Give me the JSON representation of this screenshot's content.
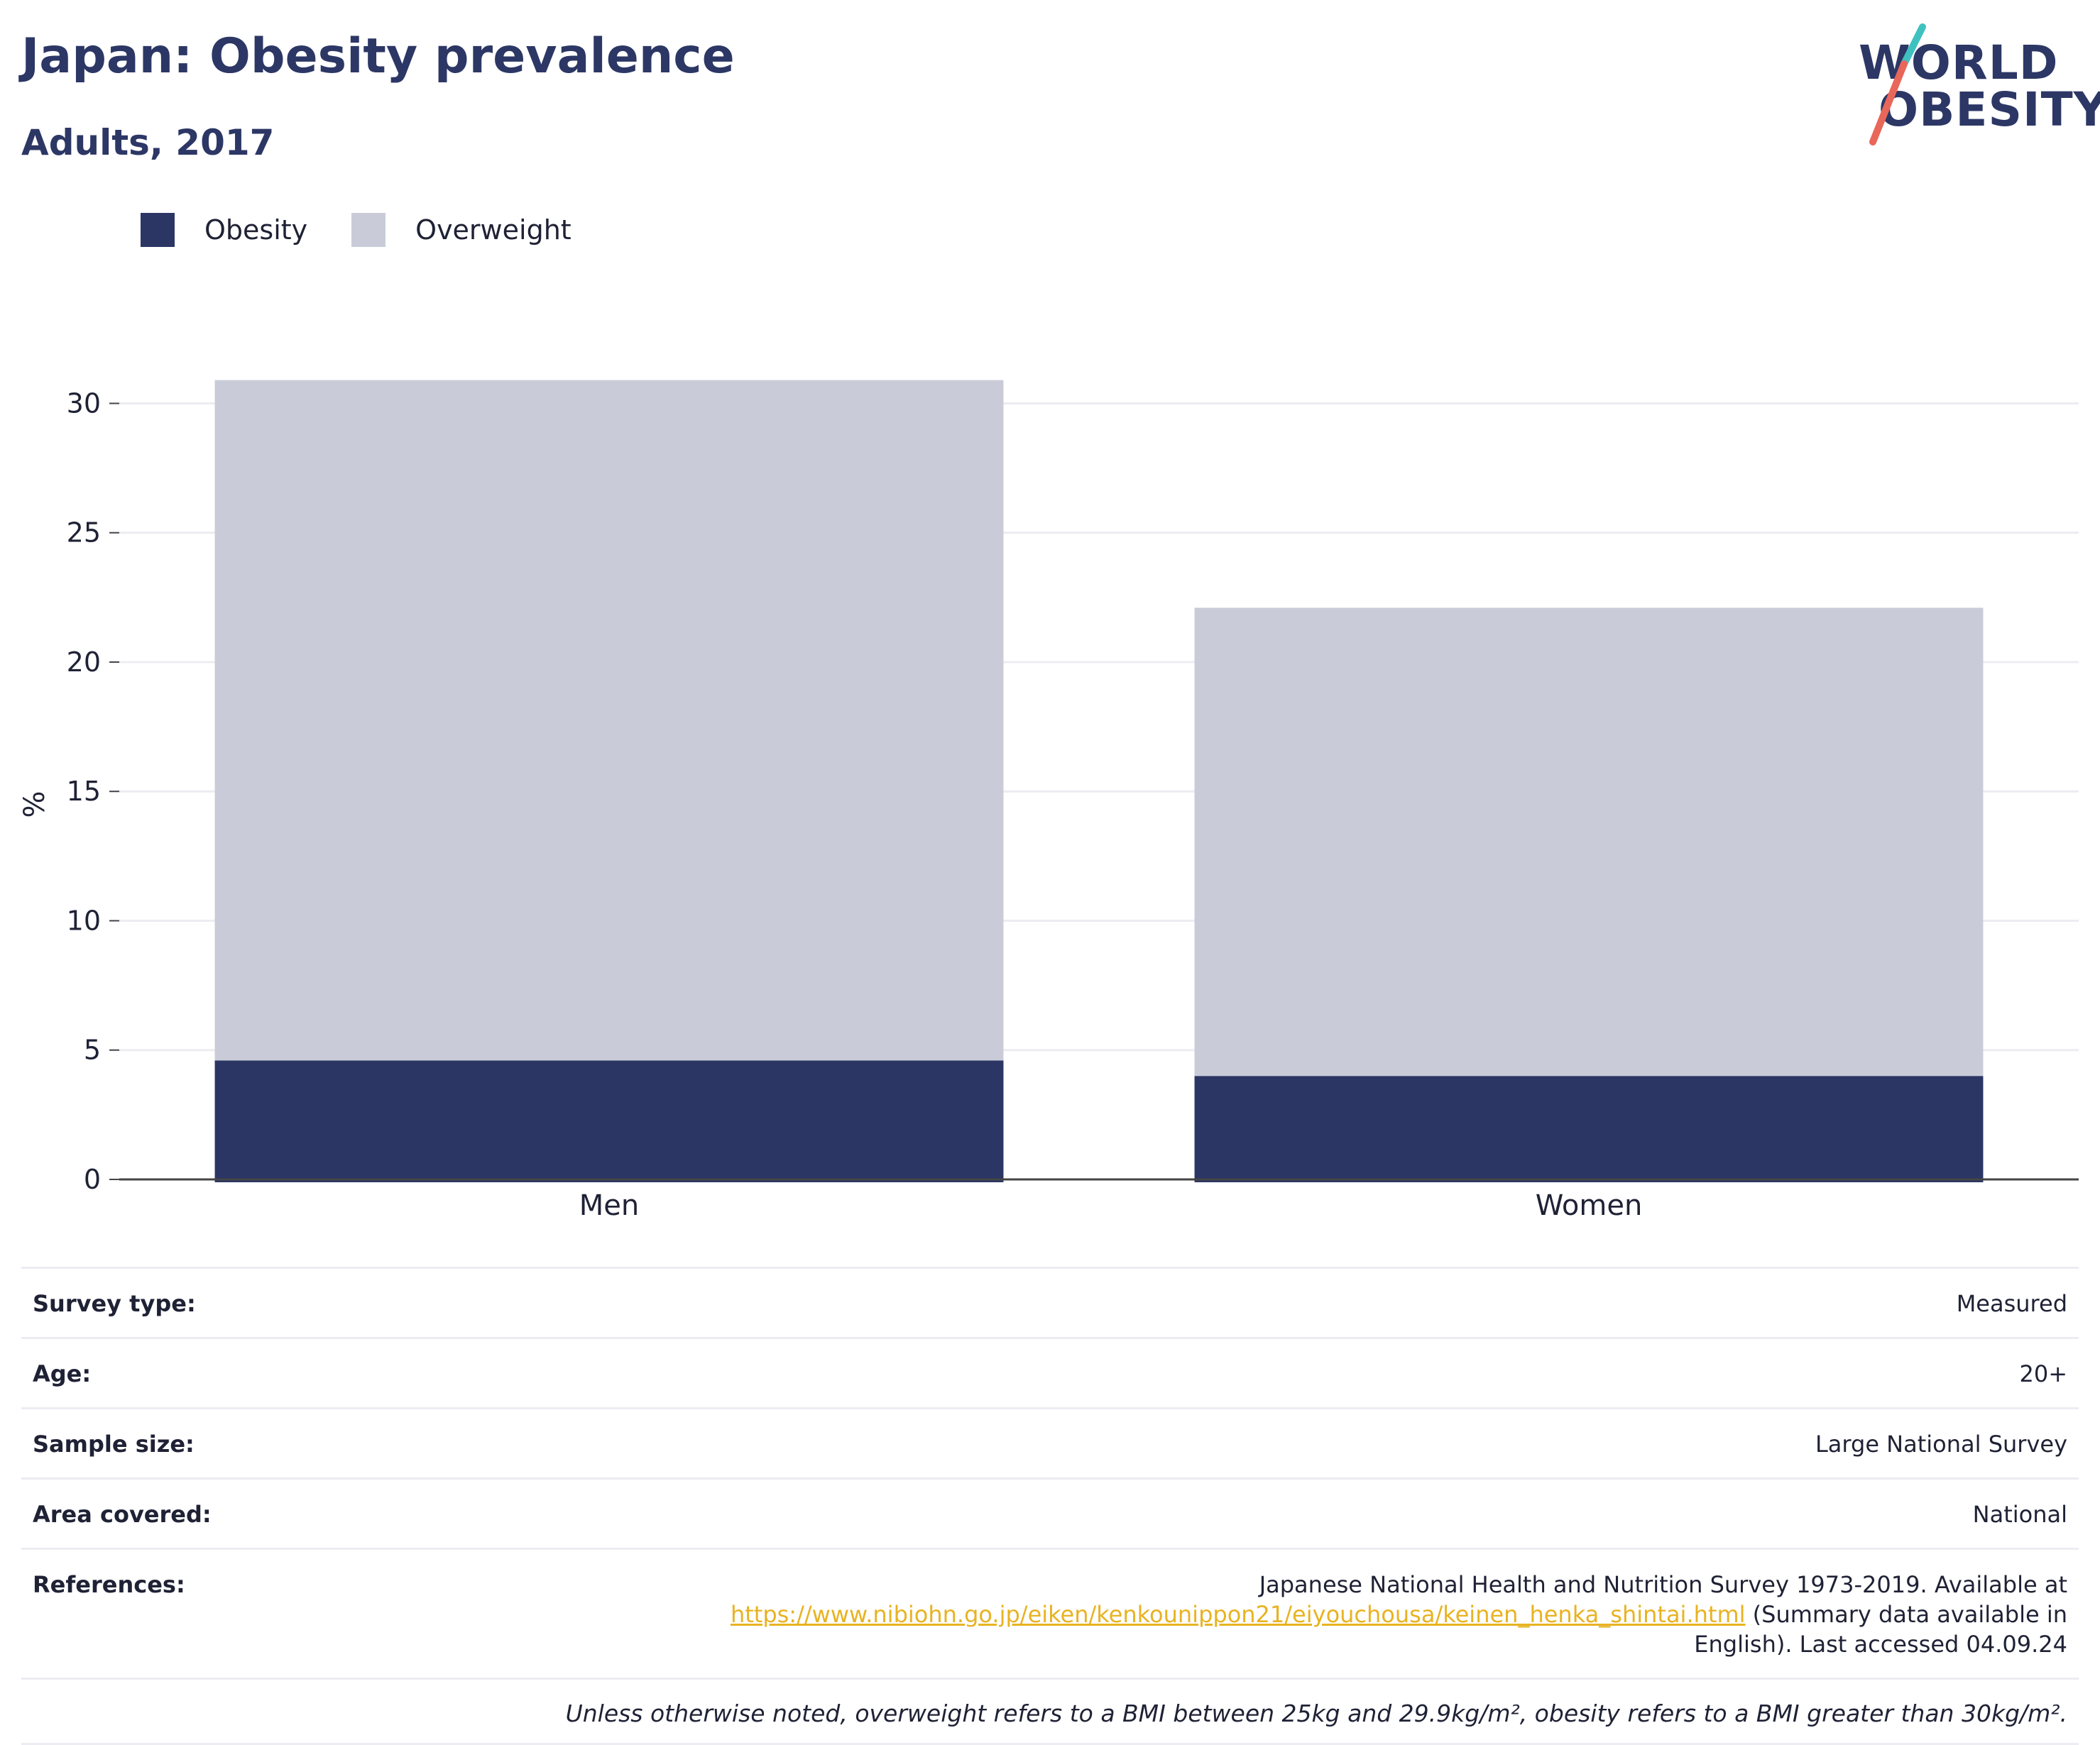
{
  "header": {
    "title": "Japan: Obesity prevalence",
    "subtitle": "Adults, 2017"
  },
  "logo": {
    "line1": "WORLD",
    "line2": "OBESITY",
    "colors": [
      "#2c3765",
      "#e8675a",
      "#3fc1c0"
    ]
  },
  "legend": [
    {
      "label": "Obesity",
      "color": "#2b3664"
    },
    {
      "label": "Overweight",
      "color": "#c9ccd8"
    }
  ],
  "chart_data": {
    "type": "bar",
    "stacked": true,
    "categories": [
      "Men",
      "Women"
    ],
    "series": [
      {
        "name": "Obesity",
        "color": "#2b3664",
        "values": [
          4.6,
          4.0
        ]
      },
      {
        "name": "Overweight",
        "color": "#c9ccd8",
        "values": [
          26.3,
          18.1
        ]
      }
    ],
    "ylabel": "%",
    "ylim": [
      0,
      31
    ],
    "yticks": [
      0,
      5,
      10,
      15,
      20,
      25,
      30
    ],
    "grid": true,
    "legend_position": "top-left"
  },
  "info": {
    "rows": [
      {
        "label": "Survey type:",
        "value": "Measured"
      },
      {
        "label": "Age:",
        "value": "20+"
      },
      {
        "label": "Sample size:",
        "value": "Large National Survey"
      },
      {
        "label": "Area covered:",
        "value": "National"
      }
    ],
    "references": {
      "label": "References:",
      "text_before": "Japanese National Health and Nutrition Survey 1973-2019. Available at",
      "link": "https://www.nibiohn.go.jp/eiken/kenkounippon21/eiyouchousa/keinen_henka_shintai.html",
      "text_after": " (Summary data available in English). Last accessed 04.09.24"
    },
    "note": "Unless otherwise noted, overweight refers to a BMI between 25kg and 29.9kg/m², obesity refers to a BMI greater than 30kg/m²."
  }
}
